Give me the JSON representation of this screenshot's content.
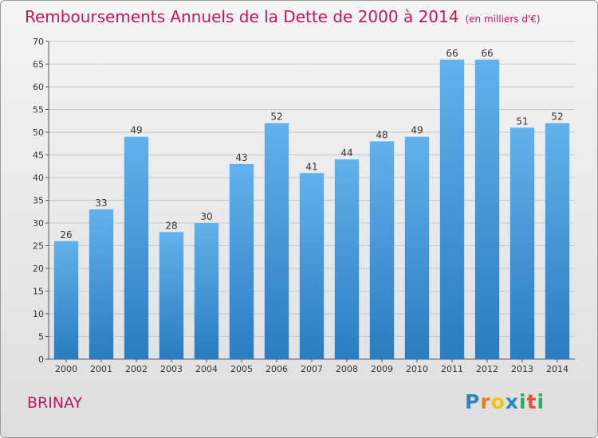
{
  "title": "Remboursements Annuels de la Dette de 2000 à 2014",
  "unit": "(en milliers d'€)",
  "town": "BRINAY",
  "logo": {
    "text": "Proxiti",
    "letters": [
      "P",
      "r",
      "o",
      "x",
      "i",
      "t",
      "i"
    ],
    "colors": [
      "#2e86c1",
      "#e67e22",
      "#f1c40f",
      "#2e86c1",
      "#27ae60",
      "#e74c3c",
      "#27ae60"
    ]
  },
  "colors": {
    "title": "#c2185b",
    "bar_top": "#62b1ec",
    "bar_bottom": "#2a7cc0",
    "grid": "#c8c8c8"
  },
  "chart_data": {
    "type": "bar",
    "title": "Remboursements Annuels de la Dette de 2000 à 2014",
    "xlabel": "",
    "ylabel": "",
    "categories": [
      "2000",
      "2001",
      "2002",
      "2003",
      "2004",
      "2005",
      "2006",
      "2007",
      "2008",
      "2009",
      "2010",
      "2011",
      "2012",
      "2013",
      "2014"
    ],
    "values": [
      26,
      33,
      49,
      28,
      30,
      43,
      52,
      41,
      44,
      48,
      49,
      66,
      66,
      51,
      52
    ],
    "ylim": [
      0,
      70
    ],
    "yticks": [
      0,
      5,
      10,
      15,
      20,
      25,
      30,
      35,
      40,
      45,
      50,
      55,
      60,
      65,
      70
    ],
    "grid": true,
    "data_labels": true
  }
}
